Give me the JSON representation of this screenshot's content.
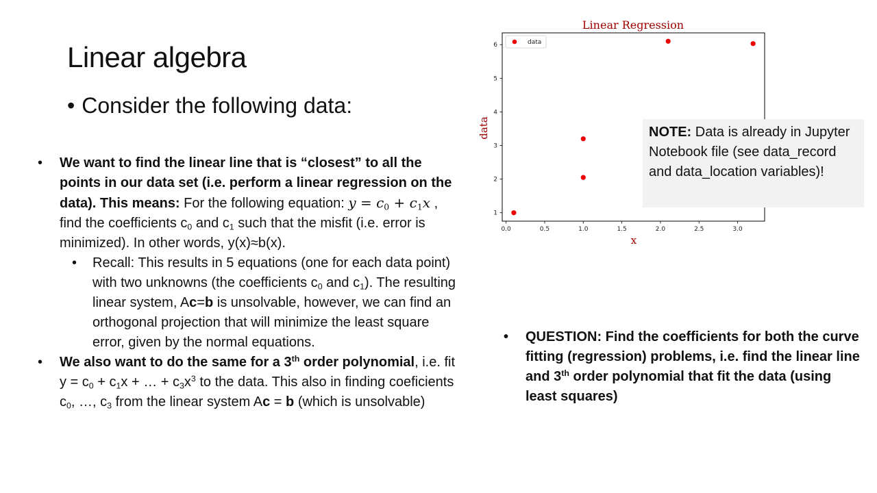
{
  "slide": {
    "title": "Linear algebra",
    "subtitle": "Consider the following data:"
  },
  "bullets": {
    "b1_bold": "We want to find the linear line that is “closest” to all the points in our data set (i.e. perform a linear regression on the data). This means:",
    "b1_text_a": " For the following equation: ",
    "b1_eq": "y = c",
    "b1_eq_sub0": "0",
    "b1_eq_mid": " + c",
    "b1_eq_sub1": "1",
    "b1_eq_end": "x",
    "b1_text_b": " , find the coefficients c",
    "b1_sub0": "0",
    "b1_text_c": " and c",
    "b1_sub1": "1",
    "b1_text_d": " such that the misfit (i.e. error is minimized). In other words, y(x)≈b(x).",
    "b1a_text_a": "Recall: This results in 5 equations (one for each data point) with two unknowns (the coefficients c",
    "b1a_sub0": "0",
    "b1a_text_b": " and c",
    "b1a_sub1": "1",
    "b1a_text_c": "). The resulting linear system, A",
    "b1a_c": "c",
    "b1a_eq": "=",
    "b1a_b": "b",
    "b1a_text_d": " is unsolvable, however, we can find an orthogonal projection that will minimize the least square error, given by the normal equations.",
    "b2_bold_a": "We also want to do the same for a 3",
    "b2_bold_sup": "th",
    "b2_bold_b": " order polynomial",
    "b2_text_a": ", i.e. fit y = c",
    "b2_sub0": "0",
    "b2_text_b": " + c",
    "b2_sub1": "1",
    "b2_text_c": "x + … + c",
    "b2_sub3": "3",
    "b2_text_d": "x",
    "b2_sup3": "3",
    "b2_text_e": " to the data. This also in finding coeficients c",
    "b2_sub0b": "0",
    "b2_text_f": ", …, c",
    "b2_sub3b": "3",
    "b2_text_g": " from the linear system A",
    "b2_c": "c",
    "b2_text_h": " = ",
    "b2_b": "b",
    "b2_text_i": " (which is unsolvable)",
    "bullet_char": "•"
  },
  "question": {
    "text_a": "QUESTION: Find the coefficients for both the curve fitting (regression) problems, i.e. find the linear line and 3",
    "sup": "th",
    "text_b": " order polynomial that fit the data (using least squares)"
  },
  "note": {
    "bold": "NOTE:",
    "text": " Data is already in Jupyter Notebook file (see data_record and data_location variables)!"
  },
  "chart_data": {
    "type": "scatter",
    "title": "Linear Regression",
    "xlabel": "x",
    "ylabel": "data",
    "xlim": [
      -0.05,
      3.35
    ],
    "ylim": [
      0.75,
      6.35
    ],
    "xticks": [
      0.0,
      0.5,
      1.0,
      1.5,
      2.0,
      2.5,
      3.0
    ],
    "xtick_labels": [
      "0.0",
      "0.5",
      "1.0",
      "1.5",
      "2.0",
      "2.5",
      "3.0"
    ],
    "yticks": [
      1,
      2,
      3,
      4,
      5,
      6
    ],
    "ytick_labels": [
      "1",
      "2",
      "3",
      "4",
      "5",
      "6"
    ],
    "legend_position": "top-left",
    "grid": false,
    "series": [
      {
        "name": "data",
        "color": "#ee0000",
        "x": [
          0.1,
          1.0,
          1.0,
          2.1,
          3.2
        ],
        "y": [
          1.0,
          3.2,
          2.05,
          6.1,
          6.03
        ]
      }
    ]
  }
}
